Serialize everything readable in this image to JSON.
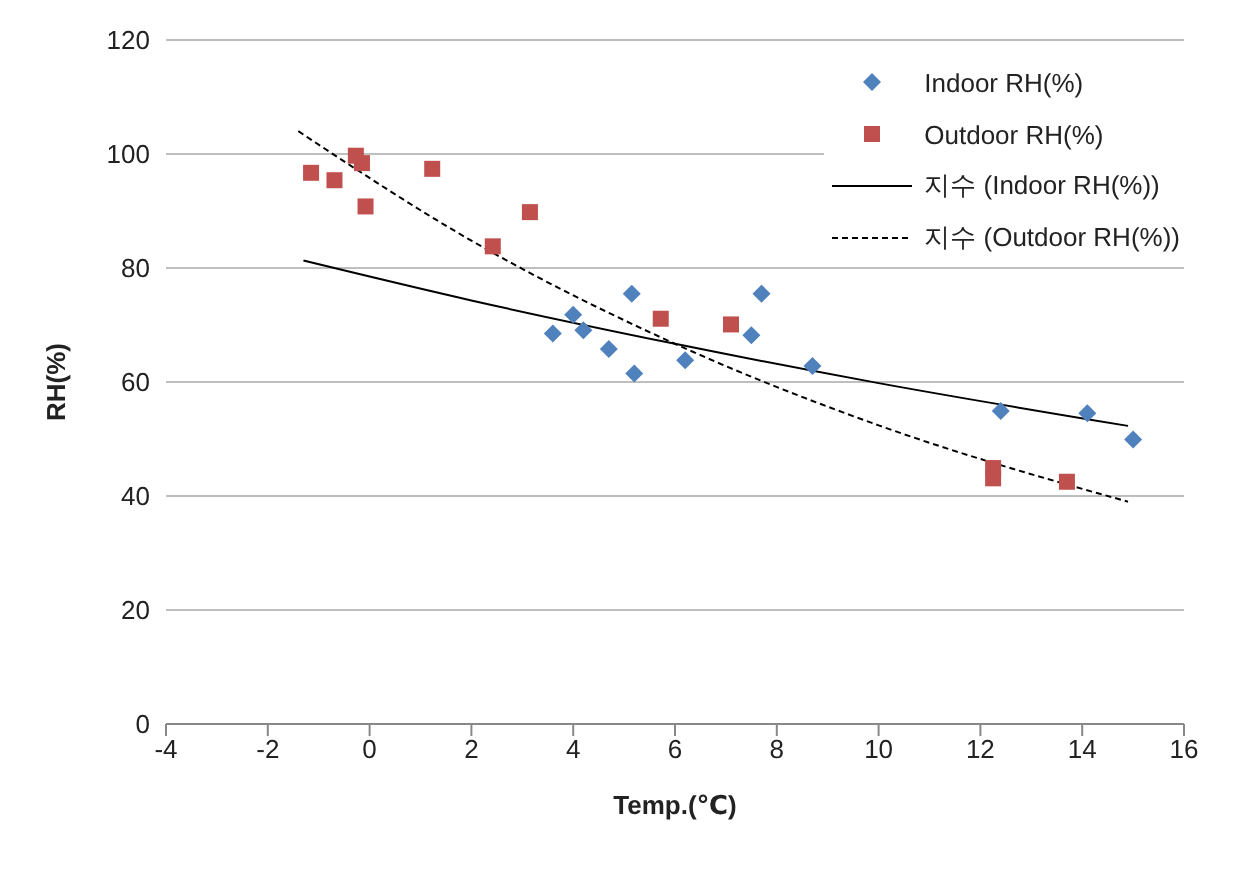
{
  "chart_data": {
    "type": "scatter",
    "xlabel": "Temp.(℃)",
    "ylabel": "RH(%)",
    "xlim": [
      -4,
      16
    ],
    "xticks": [
      -4,
      -2,
      0,
      2,
      4,
      6,
      8,
      10,
      12,
      14,
      16
    ],
    "ylim": [
      0,
      120
    ],
    "yticks": [
      0,
      20,
      40,
      60,
      80,
      100,
      120
    ],
    "grid": "y",
    "legend": "top right",
    "series": [
      {
        "name": "Indoor RH(%)",
        "type": "scatter",
        "color": "#4f81bd",
        "marker": "diamond",
        "x": [
          3.6,
          4.0,
          4.2,
          4.7,
          5.15,
          5.2,
          6.2,
          7.5,
          7.7,
          8.7,
          12.4,
          14.1,
          15.0
        ],
        "values": [
          68.5,
          71.8,
          69.1,
          65.8,
          75.5,
          61.5,
          63.8,
          68.2,
          75.5,
          62.8,
          54.9,
          54.5,
          49.9
        ]
      },
      {
        "name": "Outdoor RH(%)",
        "type": "scatter",
        "color": "#c0504d",
        "marker": "square",
        "x": [
          -1.15,
          -0.69,
          -0.27,
          -0.15,
          -0.08,
          1.23,
          2.42,
          3.15,
          5.72,
          7.1,
          12.25,
          12.25,
          13.7
        ],
        "values": [
          96.7,
          95.4,
          99.7,
          98.4,
          90.8,
          97.4,
          83.8,
          89.8,
          71.1,
          70.1,
          44.9,
          43.1,
          42.5
        ]
      },
      {
        "name": "지수 (Indoor RH(%))",
        "type": "line",
        "color": "#000000",
        "marker": "none",
        "line_style": "solid",
        "x": [
          -1.3,
          2,
          6,
          10,
          14.9
        ],
        "values": [
          81.3,
          74.3,
          66.7,
          59.8,
          52.3
        ]
      },
      {
        "name": "지수 (Outdoor RH(%))",
        "type": "line",
        "color": "#000000",
        "marker": "none",
        "line_style": "dashed",
        "x": [
          -1.4,
          2,
          6,
          10,
          14.9
        ],
        "values": [
          104,
          84.8,
          66.7,
          52.4,
          39
        ]
      }
    ]
  }
}
